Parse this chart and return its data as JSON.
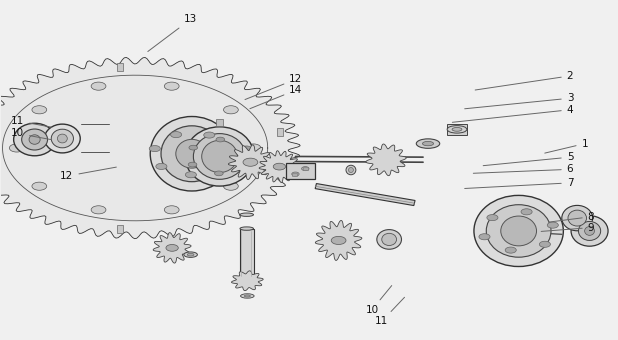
{
  "background_color": "#f0f0f0",
  "figure_width": 6.18,
  "figure_height": 3.4,
  "dpi": 100,
  "line_color": "#444444",
  "label_fontsize": 7.5,
  "label_color": "#111111",
  "leader_color": "#666666"
}
